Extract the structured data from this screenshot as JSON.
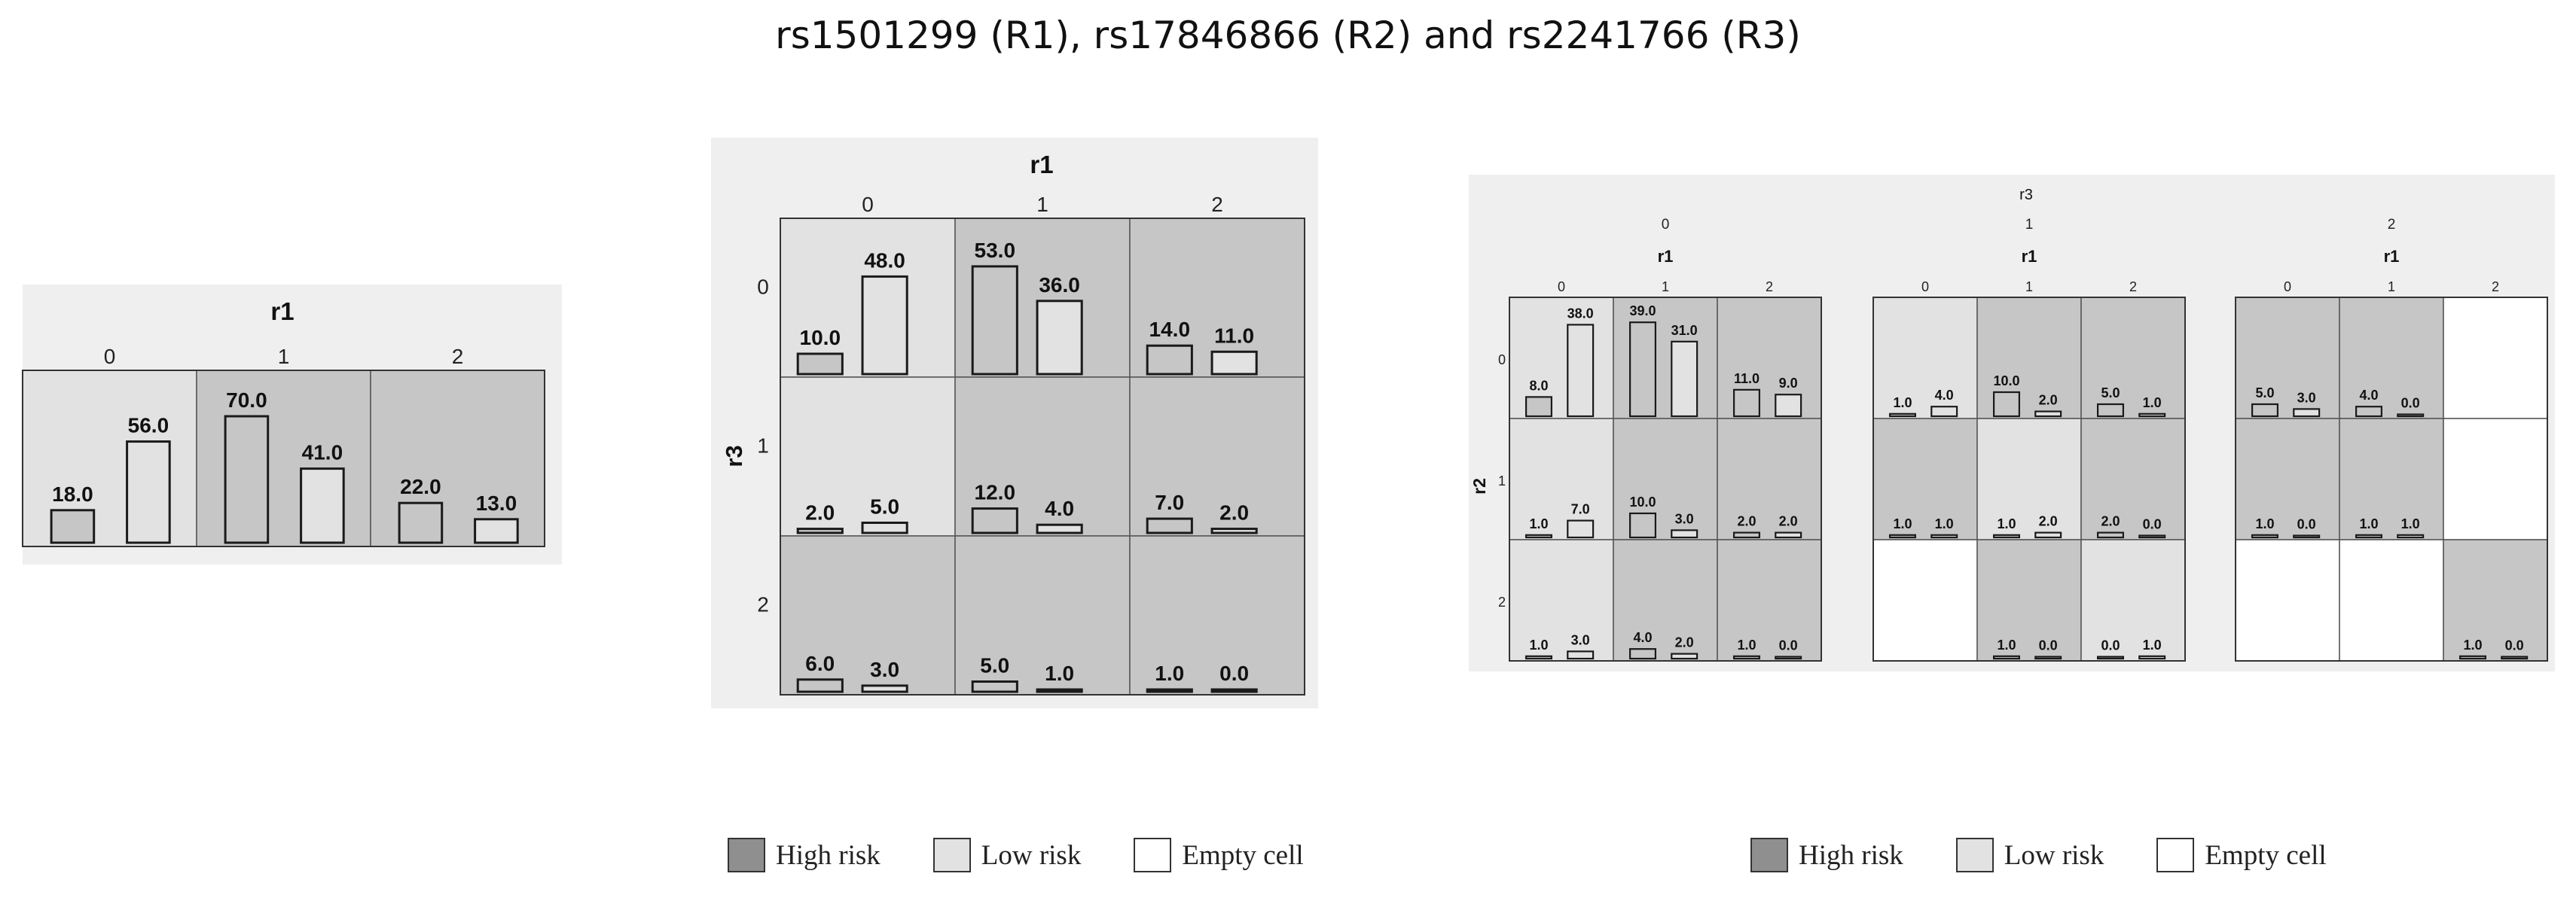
{
  "title": "rs1501299 (R1), rs17846866 (R2) and rs2241766 (R3)",
  "colors": {
    "high": "#c6c6c6",
    "low": "#e2e2e2",
    "empty": "#ffffff",
    "panel": "#efefef",
    "edge": "#1a1a1a"
  },
  "legend": {
    "high": "High risk",
    "low": "Low risk",
    "empty": "Empty cell"
  },
  "chart_data": [
    {
      "type": "bar",
      "col_var": "r1",
      "col_levels": [
        "0",
        "1",
        "2"
      ],
      "cells": [
        {
          "r1": "0",
          "risk": "low",
          "values": [
            18.0,
            56.0
          ],
          "labels": [
            "18.0",
            "56.0"
          ]
        },
        {
          "r1": "1",
          "risk": "high",
          "values": [
            70.0,
            41.0
          ],
          "labels": [
            "70.0",
            "41.0"
          ]
        },
        {
          "r1": "2",
          "risk": "high",
          "values": [
            22.0,
            13.0
          ],
          "labels": [
            "22.0",
            "13.0"
          ]
        }
      ]
    },
    {
      "type": "bar",
      "col_var": "r1",
      "row_var": "r3",
      "col_levels": [
        "0",
        "1",
        "2"
      ],
      "row_levels": [
        "0",
        "1",
        "2"
      ],
      "cells": [
        {
          "r3": "0",
          "r1": "0",
          "risk": "low",
          "values": [
            10.0,
            48.0
          ],
          "labels": [
            "10.0",
            "48.0"
          ]
        },
        {
          "r3": "0",
          "r1": "1",
          "risk": "high",
          "values": [
            53.0,
            36.0
          ],
          "labels": [
            "53.0",
            "36.0"
          ]
        },
        {
          "r3": "0",
          "r1": "2",
          "risk": "high",
          "values": [
            14.0,
            11.0
          ],
          "labels": [
            "14.0",
            "11.0"
          ]
        },
        {
          "r3": "1",
          "r1": "0",
          "risk": "low",
          "values": [
            2.0,
            5.0
          ],
          "labels": [
            "2.0",
            "5.0"
          ]
        },
        {
          "r3": "1",
          "r1": "1",
          "risk": "high",
          "values": [
            12.0,
            4.0
          ],
          "labels": [
            "12.0",
            "4.0"
          ]
        },
        {
          "r3": "1",
          "r1": "2",
          "risk": "high",
          "values": [
            7.0,
            2.0
          ],
          "labels": [
            "7.0",
            "2.0"
          ]
        },
        {
          "r3": "2",
          "r1": "0",
          "risk": "high",
          "values": [
            6.0,
            3.0
          ],
          "labels": [
            "6.0",
            "3.0"
          ]
        },
        {
          "r3": "2",
          "r1": "1",
          "risk": "high",
          "values": [
            5.0,
            1.0
          ],
          "labels": [
            "5.0",
            "1.0"
          ]
        },
        {
          "r3": "2",
          "r1": "2",
          "risk": "high",
          "values": [
            1.0,
            0.0
          ],
          "labels": [
            "1.0",
            "0.0"
          ]
        }
      ]
    },
    {
      "type": "bar",
      "outer_var": "r3",
      "col_var": "r1",
      "row_var": "r2",
      "outer_levels": [
        "0",
        "1",
        "2"
      ],
      "col_levels": [
        "0",
        "1",
        "2"
      ],
      "row_levels": [
        "0",
        "1",
        "2"
      ],
      "blocks": [
        {
          "r3": "0",
          "cells": [
            {
              "r2": "0",
              "r1": "0",
              "risk": "low",
              "values": [
                8.0,
                38.0
              ],
              "labels": [
                "8.0",
                "38.0"
              ]
            },
            {
              "r2": "0",
              "r1": "1",
              "risk": "high",
              "values": [
                39.0,
                31.0
              ],
              "labels": [
                "39.0",
                "31.0"
              ]
            },
            {
              "r2": "0",
              "r1": "2",
              "risk": "high",
              "values": [
                11.0,
                9.0
              ],
              "labels": [
                "11.0",
                "9.0"
              ]
            },
            {
              "r2": "1",
              "r1": "0",
              "risk": "low",
              "values": [
                1.0,
                7.0
              ],
              "labels": [
                "1.0",
                "7.0"
              ]
            },
            {
              "r2": "1",
              "r1": "1",
              "risk": "high",
              "values": [
                10.0,
                3.0
              ],
              "labels": [
                "10.0",
                "3.0"
              ]
            },
            {
              "r2": "1",
              "r1": "2",
              "risk": "high",
              "values": [
                2.0,
                2.0
              ],
              "labels": [
                "2.0",
                "2.0"
              ]
            },
            {
              "r2": "2",
              "r1": "0",
              "risk": "low",
              "values": [
                1.0,
                3.0
              ],
              "labels": [
                "1.0",
                "3.0"
              ]
            },
            {
              "r2": "2",
              "r1": "1",
              "risk": "high",
              "values": [
                4.0,
                2.0
              ],
              "labels": [
                "4.0",
                "2.0"
              ]
            },
            {
              "r2": "2",
              "r1": "2",
              "risk": "high",
              "values": [
                1.0,
                0.0
              ],
              "labels": [
                "1.0",
                "0.0"
              ]
            }
          ]
        },
        {
          "r3": "1",
          "cells": [
            {
              "r2": "0",
              "r1": "0",
              "risk": "low",
              "values": [
                1.0,
                4.0
              ],
              "labels": [
                "1.0",
                "4.0"
              ]
            },
            {
              "r2": "0",
              "r1": "1",
              "risk": "high",
              "values": [
                10.0,
                2.0
              ],
              "labels": [
                "10.0",
                "2.0"
              ]
            },
            {
              "r2": "0",
              "r1": "2",
              "risk": "high",
              "values": [
                5.0,
                1.0
              ],
              "labels": [
                "5.0",
                "1.0"
              ]
            },
            {
              "r2": "1",
              "r1": "0",
              "risk": "high",
              "values": [
                1.0,
                1.0
              ],
              "labels": [
                "1.0",
                "1.0"
              ]
            },
            {
              "r2": "1",
              "r1": "1",
              "risk": "low",
              "values": [
                1.0,
                2.0
              ],
              "labels": [
                "1.0",
                "2.0"
              ]
            },
            {
              "r2": "1",
              "r1": "2",
              "risk": "high",
              "values": [
                2.0,
                0.0
              ],
              "labels": [
                "2.0",
                "0.0"
              ]
            },
            {
              "r2": "2",
              "r1": "0",
              "risk": "empty"
            },
            {
              "r2": "2",
              "r1": "1",
              "risk": "high",
              "values": [
                1.0,
                0.0
              ],
              "labels": [
                "1.0",
                "0.0"
              ]
            },
            {
              "r2": "2",
              "r1": "2",
              "risk": "low",
              "values": [
                0.0,
                1.0
              ],
              "labels": [
                "0.0",
                "1.0"
              ]
            }
          ]
        },
        {
          "r3": "2",
          "cells": [
            {
              "r2": "0",
              "r1": "0",
              "risk": "high",
              "values": [
                5.0,
                3.0
              ],
              "labels": [
                "5.0",
                "3.0"
              ]
            },
            {
              "r2": "0",
              "r1": "1",
              "risk": "high",
              "values": [
                4.0,
                0.0
              ],
              "labels": [
                "4.0",
                "0.0"
              ]
            },
            {
              "r2": "0",
              "r1": "2",
              "risk": "empty"
            },
            {
              "r2": "1",
              "r1": "0",
              "risk": "high",
              "values": [
                1.0,
                0.0
              ],
              "labels": [
                "1.0",
                "0.0"
              ]
            },
            {
              "r2": "1",
              "r1": "1",
              "risk": "high",
              "values": [
                1.0,
                1.0
              ],
              "labels": [
                "1.0",
                "1.0"
              ]
            },
            {
              "r2": "1",
              "r1": "2",
              "risk": "empty"
            },
            {
              "r2": "2",
              "r1": "0",
              "risk": "empty"
            },
            {
              "r2": "2",
              "r1": "1",
              "risk": "empty"
            },
            {
              "r2": "2",
              "r1": "2",
              "risk": "high",
              "values": [
                1.0,
                0.0
              ],
              "labels": [
                "1.0",
                "0.0"
              ]
            }
          ]
        }
      ]
    }
  ]
}
